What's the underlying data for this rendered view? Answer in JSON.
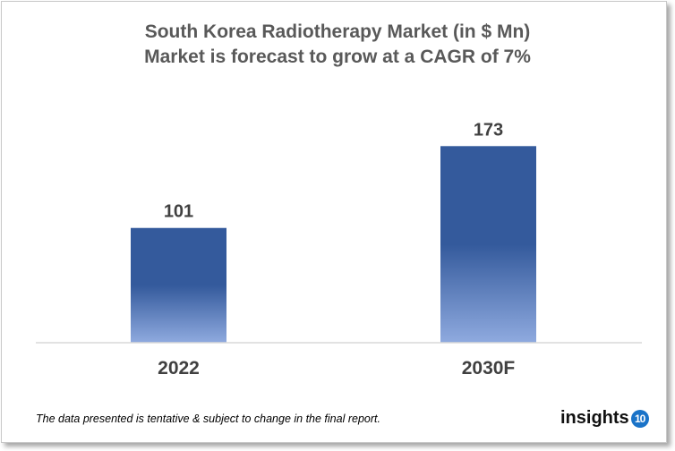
{
  "chart_data": {
    "type": "bar",
    "title": "South Korea Radiotherapy Market (in $ Mn)",
    "subtitle": "Market is forecast to grow at a CAGR of 7%",
    "categories": [
      "2022",
      "2030F"
    ],
    "values": [
      101,
      173
    ],
    "data_labels": [
      "101",
      "173"
    ],
    "xlabel": "",
    "ylabel": "",
    "grid": false,
    "legend": "none",
    "colors": {
      "bar_top": "#345a9c",
      "bar_bottom": "#8faadf",
      "axis": "#d9d9d9",
      "label": "#404040"
    }
  },
  "footer": {
    "note": "The data presented is tentative & subject to change in the final report.",
    "logo_text": "insights",
    "logo_badge": "10"
  }
}
